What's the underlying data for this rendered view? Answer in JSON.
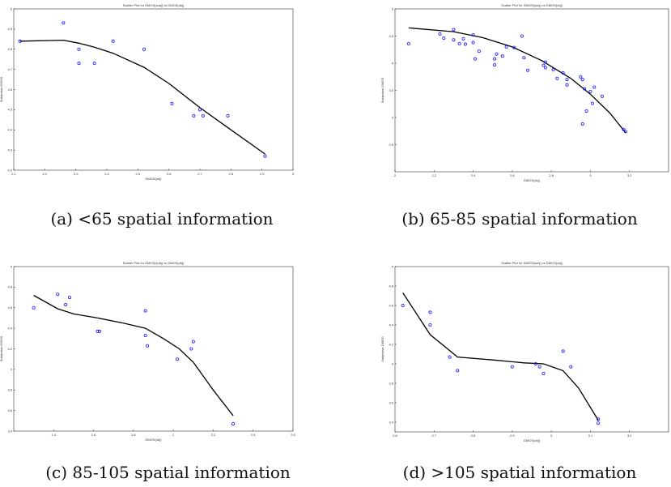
{
  "chart_data": [
    {
      "type": "scatter",
      "title": "Scatter Plot for DMOS(subj) vs DMOS(obj)",
      "xlabel": "DMOS(obj)",
      "ylabel": "Subjective DMOS",
      "xlim": [
        2.1,
        3.0
      ],
      "ylim": [
        4.2,
        5.0
      ],
      "xticks": [
        "2.1",
        "2.2",
        "2.3",
        "2.4",
        "2.5",
        "2.6",
        "2.7",
        "2.8",
        "2.9",
        "3"
      ],
      "yticks": [
        "4.2",
        "4.3",
        "4.4",
        "4.5",
        "4.6",
        "4.7",
        "4.8",
        "4.9",
        "5"
      ],
      "caption": "(a) <65 spatial information",
      "points": {
        "x": [
          2.12,
          2.26,
          2.31,
          2.31,
          2.36,
          2.42,
          2.52,
          2.61,
          2.68,
          2.7,
          2.71,
          2.79,
          2.91
        ],
        "y": [
          4.84,
          4.93,
          4.73,
          4.8,
          4.73,
          4.84,
          4.8,
          4.53,
          4.47,
          4.5,
          4.47,
          4.47,
          4.27
        ]
      },
      "fit": {
        "x": [
          2.12,
          2.26,
          2.31,
          2.36,
          2.42,
          2.52,
          2.6,
          2.7,
          2.8,
          2.91
        ],
        "y": [
          4.84,
          4.845,
          4.83,
          4.81,
          4.78,
          4.71,
          4.63,
          4.51,
          4.4,
          4.28
        ]
      }
    },
    {
      "type": "scatter",
      "title": "Scatter Plot for DMOS(subj) vs DMOS(obj)",
      "xlabel": "DMOS(obj)",
      "ylabel": "Subjective DMOS",
      "xlim": [
        2.0,
        3.4
      ],
      "ylim": [
        2.0,
        5.0
      ],
      "xticks": [
        "2",
        "2.2",
        "2.4",
        "2.6",
        "2.8",
        "3",
        "3.2"
      ],
      "yticks": [
        "2.5",
        "3",
        "3.5",
        "4",
        "4.5",
        "5"
      ],
      "caption": "(b) 65-85 spatial information",
      "points": {
        "x": [
          2.07,
          2.23,
          2.25,
          2.3,
          2.3,
          2.33,
          2.35,
          2.36,
          2.4,
          2.4,
          2.41,
          2.43,
          2.51,
          2.51,
          2.52,
          2.55,
          2.57,
          2.61,
          2.65,
          2.66,
          2.68,
          2.76,
          2.77,
          2.77,
          2.81,
          2.83,
          2.86,
          2.88,
          2.88,
          2.95,
          2.96,
          2.96,
          2.97,
          2.98,
          3.0,
          3.01,
          3.02,
          3.06,
          3.17,
          3.18
        ],
        "y": [
          4.36,
          4.54,
          4.46,
          4.43,
          4.62,
          4.36,
          4.45,
          4.35,
          4.52,
          4.38,
          4.08,
          4.22,
          4.08,
          3.97,
          4.17,
          4.13,
          4.3,
          4.29,
          4.5,
          4.1,
          3.87,
          3.96,
          4.02,
          3.92,
          3.88,
          3.72,
          3.82,
          3.7,
          3.6,
          3.75,
          3.7,
          2.88,
          3.53,
          3.12,
          3.48,
          3.26,
          3.56,
          3.39,
          2.78,
          2.74
        ]
      },
      "fit": {
        "x": [
          2.07,
          2.3,
          2.45,
          2.6,
          2.75,
          2.9,
          3.0,
          3.1,
          3.18
        ],
        "y": [
          4.65,
          4.58,
          4.47,
          4.3,
          4.05,
          3.72,
          3.43,
          3.08,
          2.72
        ]
      }
    },
    {
      "type": "scatter",
      "title": "Scatter Plot for DMOS(subj) vs DMOS(obj)",
      "xlabel": "DMOS(obj)",
      "ylabel": "Subjective DMOS",
      "xlim": [
        1.2,
        2.6
      ],
      "ylim": [
        3.4,
        5.0
      ],
      "xticks": [
        "1.4",
        "1.6",
        "1.8",
        "2",
        "2.2",
        "2.4",
        "2.6"
      ],
      "yticks": [
        "3.4",
        "3.6",
        "3.8",
        "4",
        "4.2",
        "4.4",
        "4.6",
        "4.8",
        "5"
      ],
      "caption": "(c) 85-105 spatial information",
      "points": {
        "x": [
          1.3,
          1.42,
          1.46,
          1.48,
          1.62,
          1.63,
          1.86,
          1.86,
          1.87,
          2.02,
          2.09,
          2.1,
          2.3
        ],
        "y": [
          4.6,
          4.73,
          4.63,
          4.7,
          4.37,
          4.37,
          4.57,
          4.33,
          4.23,
          4.1,
          4.2,
          4.27,
          3.47
        ]
      },
      "fit": {
        "x": [
          1.3,
          1.42,
          1.5,
          1.62,
          1.75,
          1.86,
          1.95,
          2.03,
          2.1,
          2.2,
          2.3
        ],
        "y": [
          4.72,
          4.59,
          4.54,
          4.5,
          4.45,
          4.4,
          4.3,
          4.2,
          4.07,
          3.8,
          3.55
        ]
      }
    },
    {
      "type": "scatter",
      "title": "Scatter Plot for DMOS(subj) vs DMOS(obj)",
      "xlabel": "DMOS(obj)",
      "ylabel": "Subjective DMOS",
      "xlim": [
        2.6,
        3.3
      ],
      "ylim": [
        3.3,
        5.0
      ],
      "xticks": [
        "2.6",
        "2.7",
        "2.8",
        "2.9",
        "3",
        "3.1",
        "3.2"
      ],
      "yticks": [
        "3.4",
        "3.6",
        "3.8",
        "4",
        "4.2",
        "4.4",
        "4.6",
        "4.8",
        "5"
      ],
      "caption": "(d) >105 spatial information",
      "points": {
        "x": [
          2.62,
          2.69,
          2.69,
          2.74,
          2.76,
          2.9,
          2.96,
          2.97,
          2.98,
          3.03,
          3.05,
          3.12,
          3.12
        ],
        "y": [
          4.6,
          4.53,
          4.4,
          4.07,
          3.93,
          3.97,
          4.0,
          3.97,
          3.9,
          4.13,
          3.97,
          3.43,
          3.39
        ]
      },
      "fit": {
        "x": [
          2.62,
          2.69,
          2.76,
          2.85,
          2.93,
          2.98,
          3.03,
          3.07,
          3.12
        ],
        "y": [
          4.73,
          4.3,
          4.07,
          4.04,
          4.01,
          4.0,
          3.93,
          3.75,
          3.42
        ]
      }
    }
  ],
  "colors": {
    "point": "#1a1aff",
    "line": "#000000",
    "axis": "#333333"
  }
}
